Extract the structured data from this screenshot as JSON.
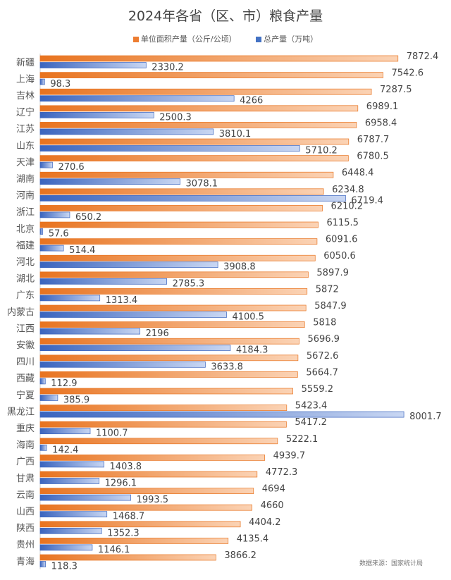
{
  "chart_data": {
    "type": "bar",
    "orientation": "horizontal",
    "title": "2024年各省（区、市）粮食产量",
    "categories": [
      "新疆",
      "上海",
      "吉林",
      "辽宁",
      "江苏",
      "山东",
      "天津",
      "湖南",
      "河南",
      "浙江",
      "北京",
      "福建",
      "河北",
      "湖北",
      "广东",
      "内蒙古",
      "江西",
      "安徽",
      "四川",
      "西藏",
      "宁夏",
      "黑龙江",
      "重庆",
      "海南",
      "广西",
      "甘肃",
      "云南",
      "山西",
      "陕西",
      "贵州",
      "青海"
    ],
    "series": [
      {
        "name": "单位面积产量（公斤/公顷）",
        "color": "#ED7D31",
        "values": [
          7872.4,
          7542.6,
          7287.5,
          6989.1,
          6958.4,
          6787.7,
          6780.5,
          6448.4,
          6234.8,
          6210.2,
          6115.5,
          6091.6,
          6050.6,
          5897.9,
          5872,
          5847.9,
          5818,
          5696.9,
          5672.6,
          5664.7,
          5559.2,
          5423.4,
          5417.2,
          5222.1,
          4939.7,
          4772.3,
          4694,
          4660,
          4404.2,
          4135.4,
          3866.2
        ]
      },
      {
        "name": "总产量（万吨）",
        "color": "#4472C4",
        "values": [
          2330.2,
          98.3,
          4266,
          2500.3,
          3810.1,
          5710.2,
          270.6,
          3078.1,
          6719.4,
          650.2,
          57.6,
          514.4,
          3908.8,
          2785.3,
          1313.4,
          4100.5,
          2196,
          4184.3,
          3633.8,
          112.9,
          385.9,
          8001.7,
          1100.7,
          142.4,
          1403.8,
          1296.1,
          1993.5,
          1468.7,
          1352.3,
          1146.1,
          118.3
        ]
      }
    ],
    "xlim": [
      0,
      8000
    ],
    "grid": false,
    "legend": "top",
    "source": "数据来源：国家统计局"
  }
}
